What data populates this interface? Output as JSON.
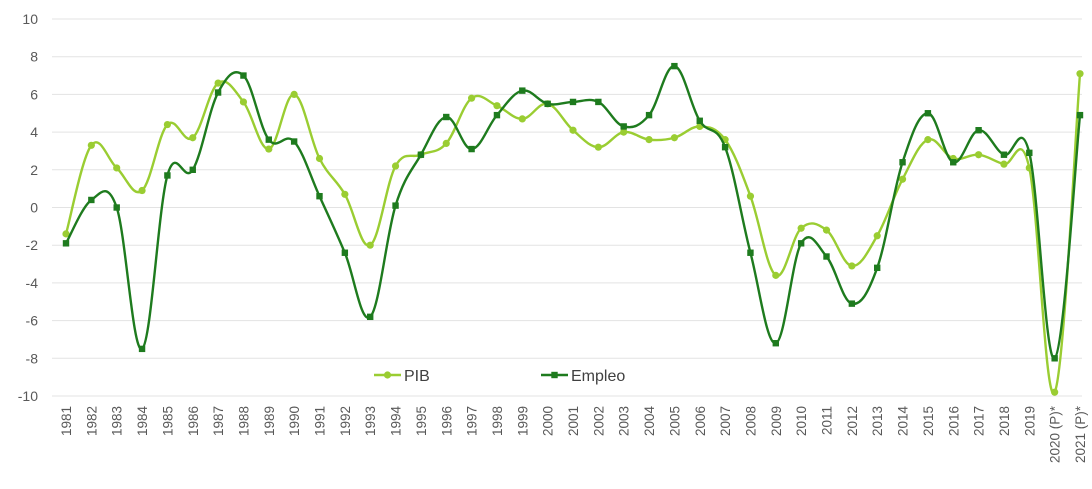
{
  "chart_data": {
    "type": "line",
    "title": "",
    "xlabel": "",
    "ylabel": "",
    "ylim": [
      -10,
      10
    ],
    "yticks": [
      10,
      8,
      6,
      4,
      2,
      0,
      -2,
      -4,
      -6,
      -8,
      -10
    ],
    "grid": true,
    "legend_position": "bottom-center",
    "categories": [
      "1981",
      "1982",
      "1983",
      "1984",
      "1985",
      "1986",
      "1987",
      "1988",
      "1989",
      "1990",
      "1991",
      "1992",
      "1993",
      "1994",
      "1995",
      "1996",
      "1997",
      "1998",
      "1999",
      "2000",
      "2001",
      "2002",
      "2003",
      "2004",
      "2005",
      "2006",
      "2007",
      "2008",
      "2009",
      "2010",
      "2011",
      "2012",
      "2013",
      "2014",
      "2015",
      "2016",
      "2017",
      "2018",
      "2019",
      "2020 (P)*",
      "2021 (P)*"
    ],
    "series": [
      {
        "name": "PIB",
        "color": "#9acd32",
        "marker": "circle",
        "values": [
          -1.4,
          3.3,
          2.1,
          0.9,
          4.4,
          3.7,
          6.6,
          5.6,
          3.1,
          6.0,
          2.6,
          0.7,
          -2.0,
          2.2,
          2.8,
          3.4,
          5.8,
          5.4,
          4.7,
          5.5,
          4.1,
          3.2,
          4.0,
          3.6,
          3.7,
          4.3,
          3.6,
          0.6,
          -3.6,
          -1.1,
          -1.2,
          -3.1,
          -1.5,
          1.5,
          3.6,
          2.6,
          2.8,
          2.3,
          2.1,
          -9.8,
          7.1
        ]
      },
      {
        "name": "Empleo",
        "color": "#1e7b1e",
        "marker": "square",
        "values": [
          -1.9,
          0.4,
          0.0,
          -7.5,
          1.7,
          2.0,
          6.1,
          7.0,
          3.6,
          3.5,
          0.6,
          -2.4,
          -5.8,
          0.1,
          2.8,
          4.8,
          3.1,
          4.9,
          6.2,
          5.5,
          5.6,
          5.6,
          4.3,
          4.9,
          7.5,
          4.6,
          3.2,
          -2.4,
          -7.2,
          -1.9,
          -2.6,
          -5.1,
          -3.2,
          2.4,
          5.0,
          2.4,
          4.1,
          2.8,
          2.9,
          -8.0,
          4.9
        ]
      }
    ]
  }
}
